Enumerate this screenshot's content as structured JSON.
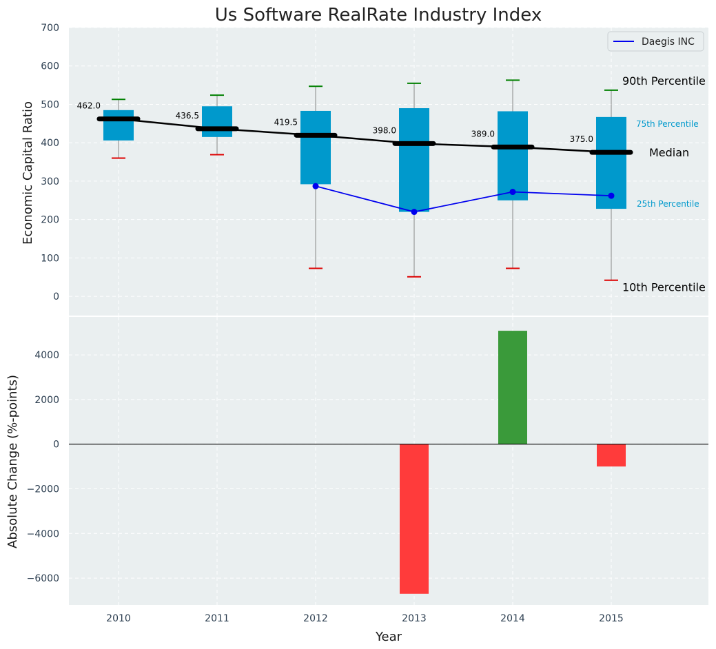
{
  "chart_data": [
    {
      "type": "box",
      "title": "Us Software RealRate Industry Index",
      "xlabel": "",
      "ylabel": "Economic Capital Ratio",
      "ylim": [
        -50,
        700
      ],
      "yticks": [
        0,
        100,
        200,
        300,
        400,
        500,
        600,
        700
      ],
      "grid": true,
      "legend_position": "top-right",
      "categories": [
        "2010",
        "2011",
        "2012",
        "2013",
        "2014",
        "2015"
      ],
      "boxes": [
        {
          "year": "2010",
          "p10": 360,
          "p25": 406,
          "median": 462.0,
          "p75": 485,
          "p90": 513
        },
        {
          "year": "2011",
          "p10": 369,
          "p25": 415,
          "median": 436.5,
          "p75": 495,
          "p90": 524
        },
        {
          "year": "2012",
          "p10": 73,
          "p25": 292,
          "median": 419.5,
          "p75": 483,
          "p90": 547
        },
        {
          "year": "2013",
          "p10": 51,
          "p25": 220,
          "median": 398.0,
          "p75": 490,
          "p90": 555
        },
        {
          "year": "2014",
          "p10": 73,
          "p25": 250,
          "median": 389.0,
          "p75": 482,
          "p90": 563
        },
        {
          "year": "2015",
          "p10": 42,
          "p25": 228,
          "median": 375.0,
          "p75": 467,
          "p90": 537
        }
      ],
      "median_labels": [
        "462.0",
        "436.5",
        "419.5",
        "398.0",
        "389.0",
        "375.0"
      ],
      "series": [
        {
          "name": "Daegis INC",
          "x": [
            "2012",
            "2013",
            "2014",
            "2015"
          ],
          "values": [
            287,
            220,
            272,
            262
          ],
          "color": "#0000ee"
        }
      ],
      "annotations": {
        "p90": "90th Percentile",
        "p75": "75th Percentile",
        "median": "Median",
        "p25": "25th Percentile",
        "p10": "10th Percentile"
      },
      "colors": {
        "box": "#0099cc",
        "median": "#000000",
        "p90_cap": "#008000",
        "p10_cap": "#dd0000",
        "whisker": "#888888",
        "background": "#eaeff0"
      }
    },
    {
      "type": "bar",
      "xlabel": "Year",
      "ylabel": "Absolute Change (%-points)",
      "ylim": [
        -7200,
        5700
      ],
      "yticks": [
        -6000,
        -4000,
        -2000,
        0,
        2000,
        4000
      ],
      "ytick_labels": [
        "−6000",
        "−4000",
        "−2000",
        "0",
        "2000",
        "4000"
      ],
      "grid": true,
      "categories": [
        "2010",
        "2011",
        "2012",
        "2013",
        "2014",
        "2015"
      ],
      "values": [
        null,
        null,
        null,
        -6700,
        5080,
        -1000
      ],
      "colors": {
        "positive": "#3a9a3a",
        "negative": "#ff3b3b"
      }
    }
  ]
}
